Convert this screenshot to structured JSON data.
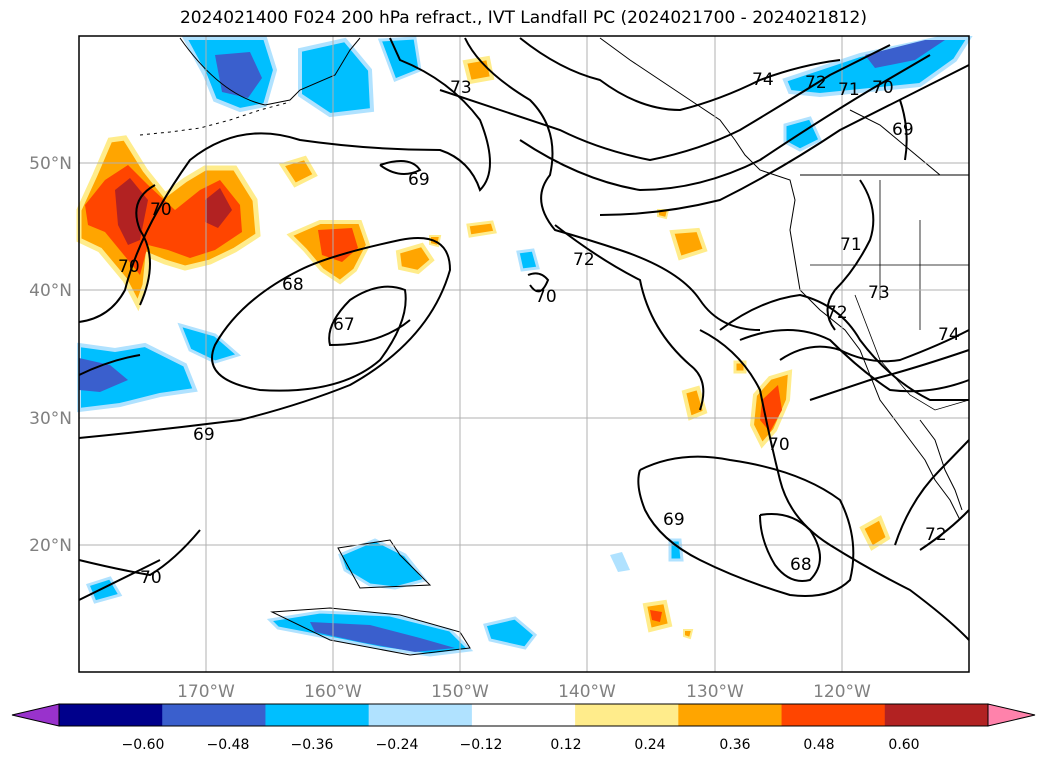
{
  "title": "2024021400 F024 200 hPa refract., IVT Landfall PC (2024021700 - 2024021812)",
  "map": {
    "lat_labels": [
      "50°N",
      "40°N",
      "30°N",
      "20°N"
    ],
    "lon_labels": [
      "170°W",
      "160°W",
      "150°W",
      "140°W",
      "130°W",
      "120°W"
    ]
  },
  "colorbar": {
    "ticks": [
      "−0.60",
      "−0.48",
      "−0.36",
      "−0.24",
      "−0.12",
      "0.12",
      "0.24",
      "0.36",
      "0.48",
      "0.60"
    ],
    "colors": [
      "#9932cc",
      "#00008b",
      "#3a5fcd",
      "#00bfff",
      "#b0e2ff",
      "#ffffff",
      "#ffec8b",
      "#ffa500",
      "#ff4500",
      "#b22222",
      "#ff82ab"
    ]
  },
  "contour_labels": [
    {
      "text": "73"
    },
    {
      "text": "69"
    },
    {
      "text": "70"
    },
    {
      "text": "70"
    },
    {
      "text": "68"
    },
    {
      "text": "67"
    },
    {
      "text": "69"
    },
    {
      "text": "72"
    },
    {
      "text": "70"
    },
    {
      "text": "74"
    },
    {
      "text": "72"
    },
    {
      "text": "71"
    },
    {
      "text": "70"
    },
    {
      "text": "69"
    },
    {
      "text": "71"
    },
    {
      "text": "73"
    },
    {
      "text": "72"
    },
    {
      "text": "74"
    },
    {
      "text": "70"
    },
    {
      "text": "69"
    },
    {
      "text": "68"
    },
    {
      "text": "72"
    },
    {
      "text": "70"
    }
  ]
}
